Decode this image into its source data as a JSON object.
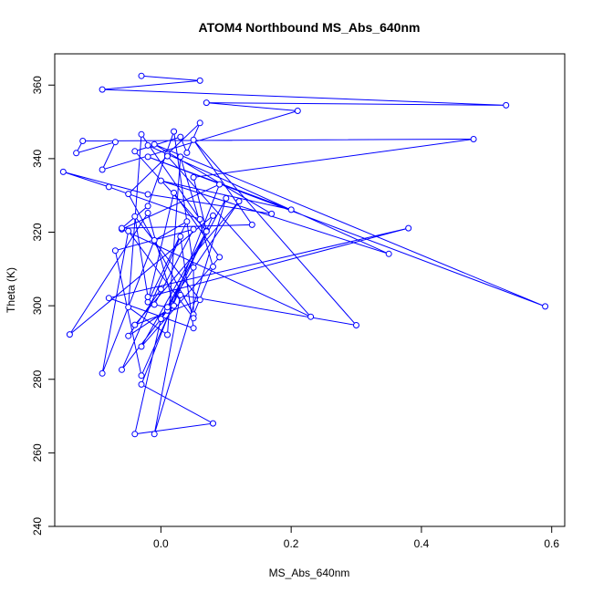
{
  "chart_data": {
    "type": "line",
    "title": "ATOM4 Northbound MS_Abs_640nm",
    "xlabel": "MS_Abs_640nm",
    "ylabel": "Theta (K)",
    "xlim": [
      -0.163,
      0.62
    ],
    "ylim": [
      240,
      368.5
    ],
    "xticks": [
      0.0,
      0.2,
      0.4,
      0.6
    ],
    "xtick_labels": [
      "0.0",
      "0.2",
      "0.4",
      "0.6"
    ],
    "yticks": [
      240,
      260,
      280,
      300,
      320,
      340,
      360
    ],
    "ytick_labels": [
      "240",
      "260",
      "280",
      "300",
      "320",
      "340",
      "360"
    ],
    "grid": false,
    "marker": "open-circle",
    "color": "#0000ff",
    "series": [
      {
        "x": [
          -0.03,
          0.06,
          -0.09,
          0.53,
          0.07,
          0.21,
          -0.09,
          -0.07,
          -0.13,
          -0.12,
          0.48,
          0.05,
          0.07,
          -0.04,
          0.03,
          0.04,
          0.06,
          0.01,
          -0.02,
          0.35,
          0.0,
          0.2,
          -0.02,
          0.59,
          -0.01,
          0.17,
          -0.02,
          -0.15,
          -0.08,
          0.06,
          -0.03,
          -0.05,
          0.01,
          0.03,
          0.08,
          0.05,
          -0.05,
          0.01,
          0.23,
          -0.06,
          0.09,
          -0.03,
          0.08,
          -0.04,
          0.0,
          0.1,
          -0.01,
          0.03,
          0.3,
          0.05,
          0.14,
          -0.06,
          -0.02,
          0.02,
          0.05,
          0.05,
          -0.05,
          -0.09,
          -0.01,
          0.04,
          -0.02,
          0.02,
          0.09,
          -0.03,
          0.07,
          0.01,
          -0.06,
          0.03,
          0.05,
          -0.08,
          0.38,
          -0.02,
          -0.04,
          0.06,
          -0.04,
          0.12,
          0.01,
          -0.01,
          0.05,
          -0.07,
          -0.03,
          0.08,
          -0.14,
          -0.02,
          0.02,
          -0.05,
          0.0
        ],
        "y": [
          362.5,
          361.2,
          358.8,
          354.5,
          355.2,
          353.0,
          337.0,
          344.5,
          341.5,
          344.8,
          345.3,
          334.9,
          320.4,
          342.0,
          345.9,
          341.6,
          349.7,
          341.2,
          343.6,
          314.1,
          334.0,
          326.1,
          340.5,
          299.8,
          343.9,
          325.0,
          330.3,
          336.4,
          332.3,
          323.5,
          346.6,
          299.6,
          292.1,
          340.5,
          310.6,
          297.6,
          330.4,
          340.7,
          297.0,
          320.8,
          333.0,
          278.6,
          268.0,
          265.1,
          296.4,
          329.2,
          265.1,
          302.9,
          294.7,
          345.1,
          322.0,
          321.1,
          327.1,
          347.4,
          310.4,
          296.6,
          320.3,
          281.6,
          317.8,
          322.9,
          301.0,
          330.7,
          313.2,
          288.9,
          320.2,
          298.7,
          282.6,
          318.8,
          293.9,
          302.1,
          321.1,
          302.4,
          324.3,
          301.6,
          294.8,
          328.4,
          299.6,
          300.3,
          320.8,
          315.0,
          281.0,
          324.5,
          292.2,
          325.2,
          300.0,
          291.8,
          304.5
        ]
      }
    ]
  }
}
